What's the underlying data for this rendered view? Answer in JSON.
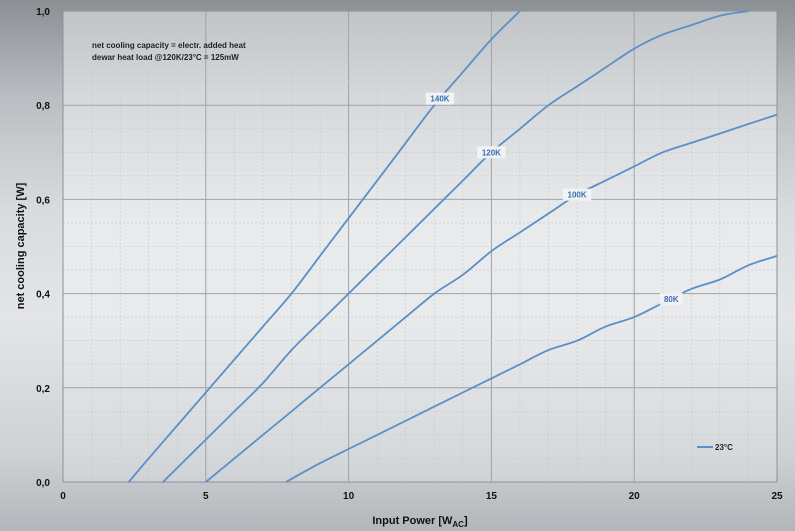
{
  "chart_data": {
    "type": "line",
    "title": "",
    "xlabel": "Input Power [W",
    "xlabel_sub": "AC",
    "xlabel_close": "]",
    "ylabel": "net cooling capacity [W]",
    "xlim": [
      0,
      25
    ],
    "ylim": [
      0.0,
      1.0
    ],
    "xticks": [
      0,
      5,
      10,
      15,
      20,
      25
    ],
    "yticks": [
      0.0,
      0.2,
      0.4,
      0.6,
      0.8,
      1.0
    ],
    "xtick_labels": [
      "0",
      "5",
      "10",
      "15",
      "20",
      "25"
    ],
    "ytick_labels": [
      "0,0",
      "0,2",
      "0,4",
      "0,6",
      "0,8",
      "1,0"
    ],
    "grid": true,
    "line_color": "#5b8fc7",
    "label_color": "#3a6fb0",
    "annotation": [
      "net cooling capacity = electr. added heat",
      "dewar heat load @120K/23°C  = 125mW"
    ],
    "legend": {
      "entries": [
        "23°C"
      ],
      "placement": "bottom-right"
    },
    "series": [
      {
        "name": "140K",
        "label_at_x": 13.2,
        "x": [
          2.3,
          3.0,
          4.0,
          5.0,
          6.0,
          7.0,
          8.0,
          9.0,
          10.0,
          11.0,
          12.0,
          13.0,
          14.0,
          15.0,
          16.0
        ],
        "y": [
          0.0,
          0.05,
          0.12,
          0.19,
          0.26,
          0.33,
          0.4,
          0.48,
          0.56,
          0.64,
          0.72,
          0.8,
          0.87,
          0.94,
          1.0
        ]
      },
      {
        "name": "120K",
        "label_at_x": 15.0,
        "x": [
          3.5,
          4.0,
          5.0,
          6.0,
          7.0,
          8.0,
          9.0,
          10.0,
          11.0,
          12.0,
          13.0,
          14.0,
          15.0,
          16.0,
          17.0,
          18.0,
          19.0,
          20.0,
          21.0,
          22.0,
          23.0,
          24.0
        ],
        "y": [
          0.0,
          0.03,
          0.09,
          0.15,
          0.21,
          0.28,
          0.34,
          0.4,
          0.46,
          0.52,
          0.58,
          0.64,
          0.7,
          0.75,
          0.8,
          0.84,
          0.88,
          0.92,
          0.95,
          0.97,
          0.99,
          1.0
        ]
      },
      {
        "name": "100K",
        "label_at_x": 18.0,
        "x": [
          5.0,
          6.0,
          7.0,
          8.0,
          9.0,
          10.0,
          11.0,
          12.0,
          13.0,
          14.0,
          15.0,
          16.0,
          17.0,
          18.0,
          19.0,
          20.0,
          21.0,
          22.0,
          23.0,
          24.0,
          25.0
        ],
        "y": [
          0.0,
          0.05,
          0.1,
          0.15,
          0.2,
          0.25,
          0.3,
          0.35,
          0.4,
          0.44,
          0.49,
          0.53,
          0.57,
          0.61,
          0.64,
          0.67,
          0.7,
          0.72,
          0.74,
          0.76,
          0.78
        ]
      },
      {
        "name": "80K",
        "label_at_x": 21.3,
        "x": [
          7.8,
          9.0,
          10.0,
          11.0,
          12.0,
          13.0,
          14.0,
          15.0,
          16.0,
          17.0,
          18.0,
          19.0,
          20.0,
          21.0,
          22.0,
          23.0,
          24.0,
          25.0
        ],
        "y": [
          0.0,
          0.04,
          0.07,
          0.1,
          0.13,
          0.16,
          0.19,
          0.22,
          0.25,
          0.28,
          0.3,
          0.33,
          0.35,
          0.38,
          0.41,
          0.43,
          0.46,
          0.48
        ]
      }
    ]
  }
}
